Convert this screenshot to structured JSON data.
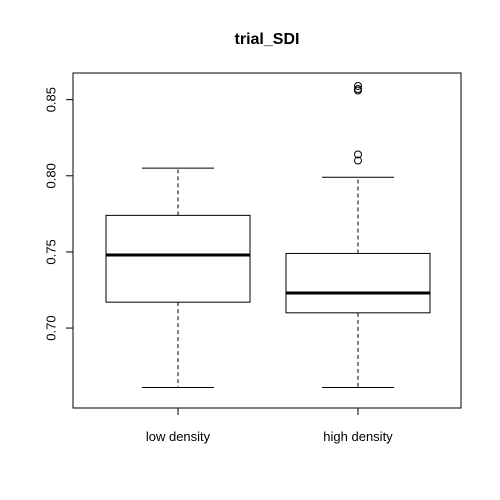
{
  "chart_data": {
    "type": "boxplot",
    "title": "trial_SDI",
    "xlabel": "",
    "ylabel": "",
    "categories": [
      "low density",
      "high density"
    ],
    "ylim": [
      0.6475,
      0.8675
    ],
    "yticks": [
      0.7,
      0.75,
      0.8,
      0.85
    ],
    "ytick_labels": [
      "0.70",
      "0.75",
      "0.80",
      "0.85"
    ],
    "boxes": [
      {
        "label": "low density",
        "whisker_low": 0.661,
        "q1": 0.717,
        "median": 0.748,
        "q3": 0.774,
        "whisker_high": 0.805,
        "outliers": []
      },
      {
        "label": "high density",
        "whisker_low": 0.661,
        "q1": 0.71,
        "median": 0.723,
        "q3": 0.749,
        "whisker_high": 0.799,
        "outliers": [
          0.81,
          0.814,
          0.856,
          0.857,
          0.859
        ]
      }
    ],
    "grid": false
  }
}
